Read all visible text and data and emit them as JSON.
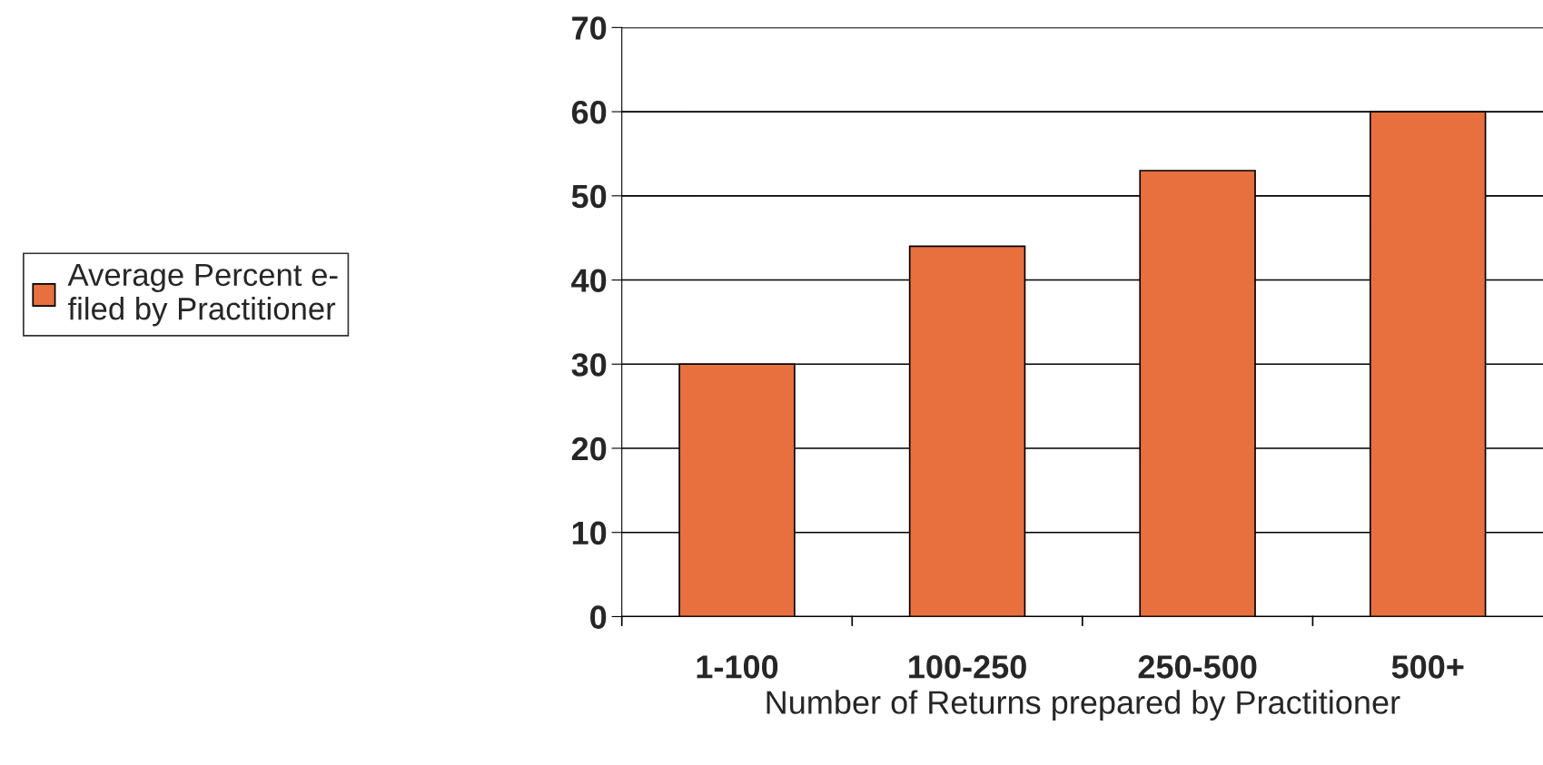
{
  "chart_data": {
    "type": "bar",
    "xlabel": "Number of Returns prepared by Practitioner",
    "categories": [
      "1-100",
      "100-250",
      "250-500",
      "500+"
    ],
    "series": [
      {
        "name": "Average Percent e-\nfiled by Practitioner",
        "color": "#e8703f",
        "values": [
          30,
          44,
          53,
          60
        ]
      }
    ],
    "ylim": [
      0,
      70
    ],
    "yticks": [
      0,
      10,
      20,
      30,
      40,
      50,
      60,
      70
    ],
    "grid": "y",
    "legend": "left"
  }
}
